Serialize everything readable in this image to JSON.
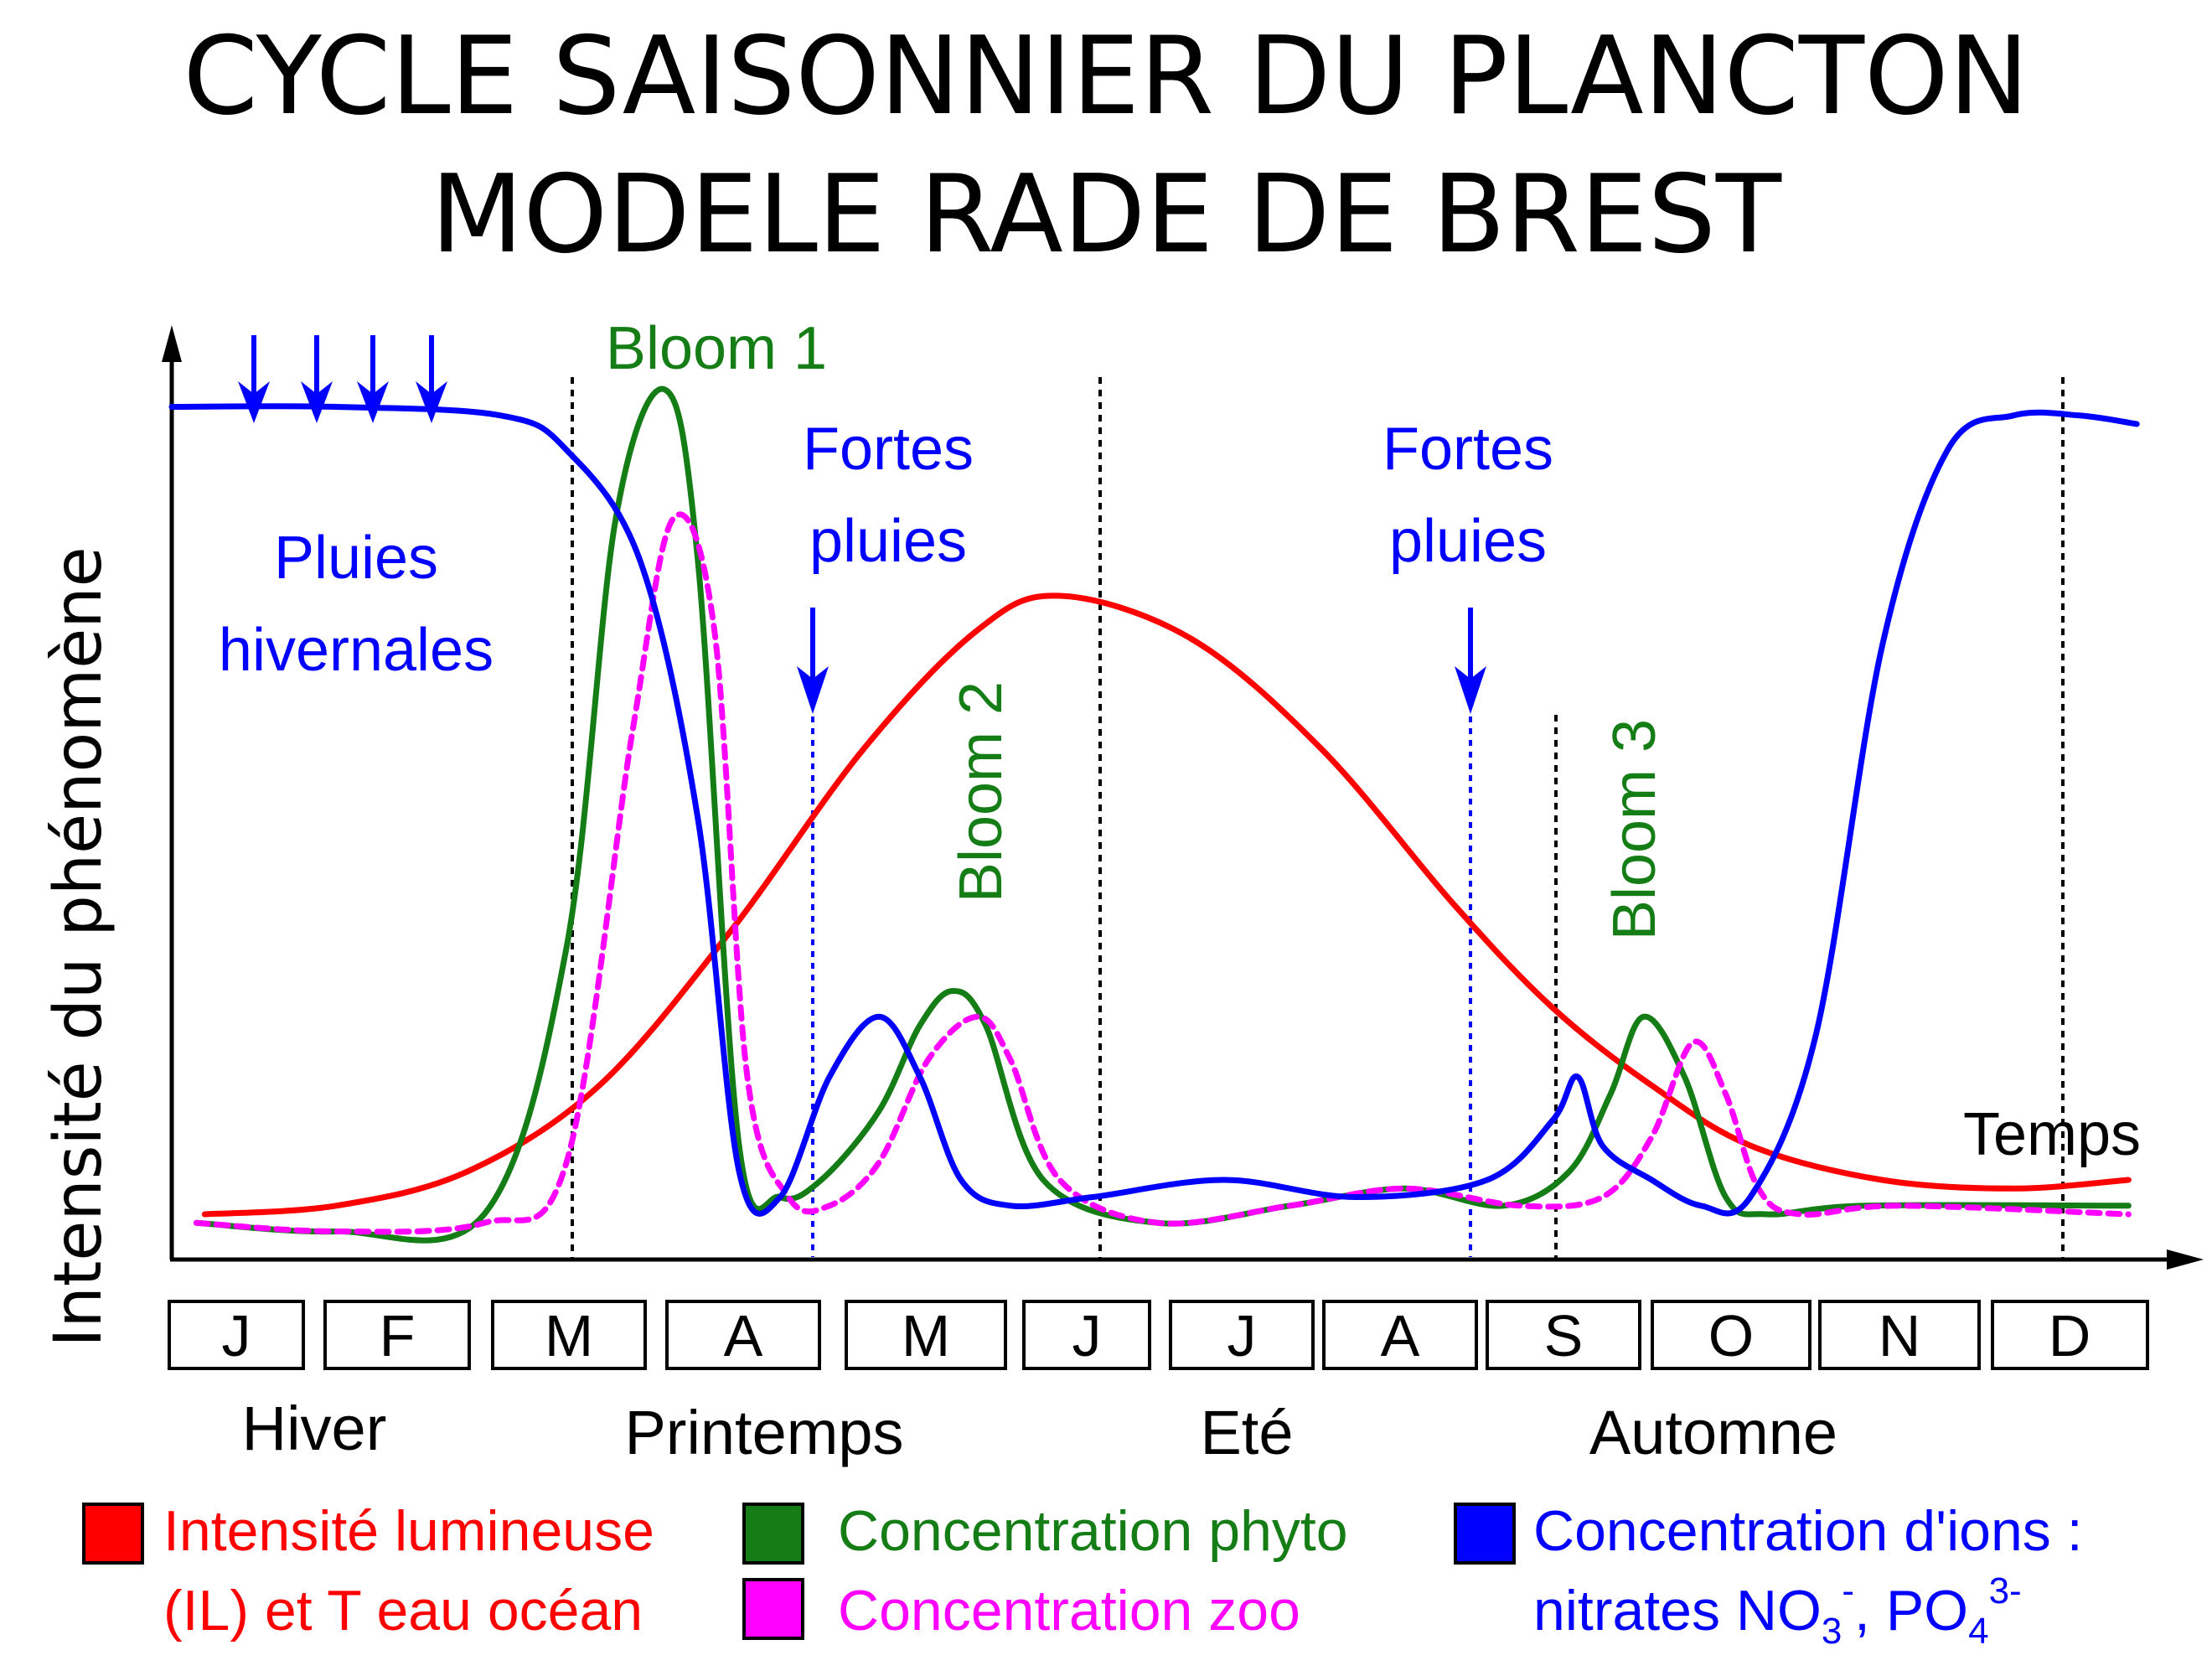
{
  "title_line1": "CYCLE SAISONNIER DU PLANCTON",
  "title_line2": "MODELE RADE DE BREST",
  "chart_data": {
    "type": "line",
    "ylabel": "Intensité du phénomène",
    "xlabel": "Temps",
    "months": [
      "J",
      "F",
      "M",
      "A",
      "M",
      "J",
      "J",
      "A",
      "S",
      "O",
      "N",
      "D"
    ],
    "seasons": [
      "Hiver",
      "Printemps",
      "Eté",
      "Automne"
    ],
    "annotations": {
      "winter_rain": [
        "Pluies",
        "hivernales"
      ],
      "heavy_rain_spring": [
        "Fortes",
        "pluies"
      ],
      "heavy_rain_autumn": [
        "Fortes",
        "pluies"
      ],
      "bloom1": "Bloom 1",
      "bloom2": "Bloom 2",
      "bloom3": "Bloom 3"
    },
    "series": [
      {
        "name": "Intensité lumineuse (IL) et T eau océan",
        "color": "#ff0000",
        "style": "solid",
        "x": [
          0.2,
          1.0,
          1.8,
          2.6,
          3.4,
          4.2,
          4.9,
          5.4,
          6.2,
          7.0,
          7.8,
          8.4,
          9.0,
          9.6,
          10.4,
          11.2,
          11.9
        ],
        "y": [
          0.04,
          0.05,
          0.09,
          0.19,
          0.37,
          0.58,
          0.72,
          0.76,
          0.71,
          0.58,
          0.4,
          0.28,
          0.19,
          0.12,
          0.08,
          0.07,
          0.08
        ]
      },
      {
        "name": "Concentration phyto",
        "color": "#157d15",
        "style": "solid",
        "x": [
          0.15,
          1.0,
          1.9,
          2.4,
          2.7,
          3.0,
          3.2,
          3.45,
          3.7,
          3.95,
          4.3,
          4.55,
          4.75,
          4.95,
          5.3,
          6.0,
          6.8,
          7.5,
          8.1,
          8.5,
          8.75,
          8.95,
          9.2,
          9.45,
          9.7,
          10.3,
          11.9
        ],
        "y": [
          0.03,
          0.02,
          0.04,
          0.35,
          0.85,
          1.0,
          0.8,
          0.12,
          0.06,
          0.08,
          0.16,
          0.26,
          0.3,
          0.26,
          0.08,
          0.03,
          0.05,
          0.07,
          0.05,
          0.09,
          0.18,
          0.27,
          0.2,
          0.06,
          0.04,
          0.05,
          0.05
        ]
      },
      {
        "name": "Concentration zoo",
        "color": "#ff00ff",
        "style": "dashed",
        "x": [
          0.15,
          1.0,
          1.9,
          2.4,
          2.8,
          3.05,
          3.3,
          3.5,
          3.75,
          4.0,
          4.3,
          4.6,
          4.9,
          5.1,
          5.4,
          6.0,
          6.8,
          7.5,
          8.2,
          8.7,
          9.0,
          9.25,
          9.45,
          9.65,
          9.9,
          10.5,
          11.9
        ],
        "y": [
          0.03,
          0.02,
          0.03,
          0.1,
          0.6,
          0.85,
          0.72,
          0.2,
          0.06,
          0.05,
          0.1,
          0.22,
          0.27,
          0.22,
          0.08,
          0.03,
          0.05,
          0.07,
          0.05,
          0.06,
          0.13,
          0.24,
          0.18,
          0.07,
          0.04,
          0.05,
          0.04
        ]
      },
      {
        "name": "Concentration d'ions : nitrates NO3-, PO4 3-",
        "color": "#0000ff",
        "style": "solid",
        "x": [
          0.0,
          1.0,
          2.0,
          2.4,
          2.85,
          3.2,
          3.45,
          3.7,
          4.0,
          4.3,
          4.55,
          4.8,
          5.1,
          5.6,
          6.4,
          7.2,
          8.0,
          8.4,
          8.55,
          8.7,
          9.0,
          9.3,
          9.6,
          10.0,
          10.4,
          10.8,
          11.2,
          11.6,
          11.95
        ],
        "y": [
          0.98,
          0.98,
          0.97,
          0.93,
          0.8,
          0.5,
          0.09,
          0.06,
          0.2,
          0.27,
          0.2,
          0.08,
          0.05,
          0.06,
          0.08,
          0.06,
          0.08,
          0.15,
          0.2,
          0.12,
          0.08,
          0.05,
          0.06,
          0.25,
          0.7,
          0.93,
          0.97,
          0.97,
          0.96
        ]
      }
    ],
    "ylim": [
      0,
      1
    ],
    "xlim": [
      0,
      12
    ],
    "legend": [
      "Intensité lumineuse",
      "(IL) et T eau océan",
      "Concentration phyto",
      "Concentration zoo",
      "Concentration d'ions :",
      "nitrates NO3-, PO4 3-"
    ]
  },
  "legend": {
    "red_line1": "Intensité lumineuse",
    "red_line2": "(IL) et T eau océan",
    "green": "Concentration phyto",
    "magenta": "Concentration zoo",
    "blue_line1": "Concentration d'ions :",
    "blue_line2_a": "nitrates NO",
    "blue_line2_sub1": "3",
    "blue_line2_sup1": "-",
    "blue_line2_b": ", PO",
    "blue_line2_sub2": "4",
    "blue_line2_sup2": "3-"
  },
  "colors": {
    "light": "#ff0000",
    "phyto": "#157d15",
    "zoo": "#ff00ff",
    "ions": "#0000ff"
  }
}
